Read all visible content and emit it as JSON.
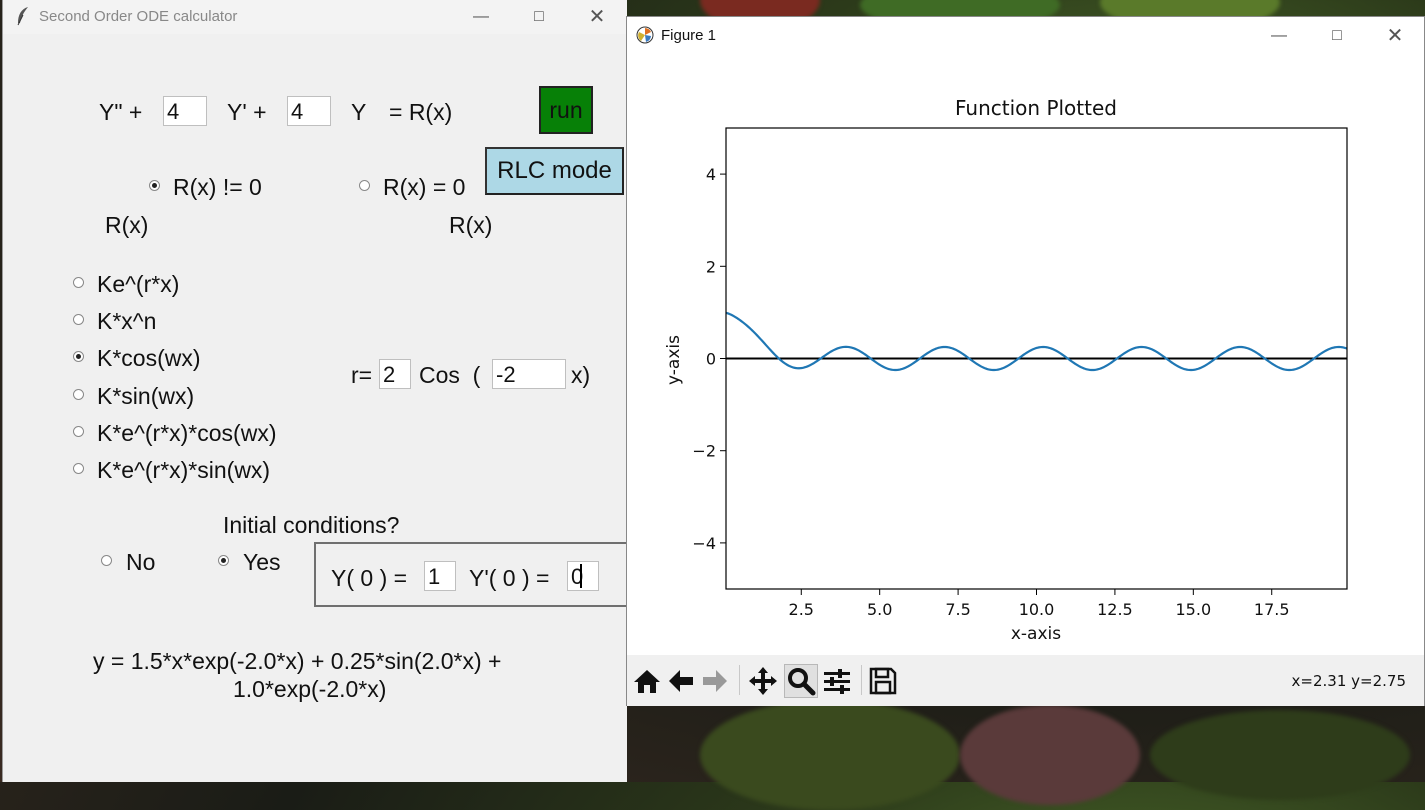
{
  "tk_window": {
    "title": "Second Order ODE calculator",
    "equation": {
      "y2_label": "Y\" +",
      "coef_b": "4",
      "y1_label": "Y' +",
      "coef_c": "4",
      "y0_label": "Y",
      "rhs_label": "= R(x)"
    },
    "run_button": "run",
    "rlc_button": "RLC mode",
    "rx_mode": {
      "nonzero_label": "R(x) != 0",
      "zero_label": "R(x) = 0",
      "selected": "nonzero",
      "col_left_label": "R(x)",
      "col_right_label": "R(x)"
    },
    "forcing_options": [
      {
        "label": "Ke^(r*x)",
        "selected": false
      },
      {
        "label": "K*x^n",
        "selected": false
      },
      {
        "label": "K*cos(wx)",
        "selected": true
      },
      {
        "label": "K*sin(wx)",
        "selected": false
      },
      {
        "label": "K*e^(r*x)*cos(wx)",
        "selected": false
      },
      {
        "label": "K*e^(r*x)*sin(wx)",
        "selected": false
      }
    ],
    "params": {
      "r_label": "r=",
      "r_value": "2",
      "func_label": "Cos  (",
      "w_value": "-2",
      "close_label": "x)"
    },
    "initial_conditions": {
      "question": "Initial conditions?",
      "no_label": "No",
      "yes_label": "Yes",
      "selected": "yes",
      "y0_label": "Y( 0 ) =",
      "y0_value": "1",
      "yp0_label": "Y'( 0 ) =",
      "yp0_value": "0"
    },
    "solution_line1": "y = 1.5*x*exp(-2.0*x) + 0.25*sin(2.0*x) +",
    "solution_line2": "1.0*exp(-2.0*x)"
  },
  "figure_window": {
    "title": "Figure 1",
    "coords_readout": "x=2.31 y=2.75",
    "toolbar": [
      "home-icon",
      "back-icon",
      "forward-icon",
      "pan-icon",
      "zoom-icon",
      "configure-icon",
      "save-icon"
    ],
    "line_color": "#1f77b4"
  },
  "chart_data": {
    "type": "line",
    "title": "Function Plotted",
    "xlabel": "x-axis",
    "ylabel": "y-axis",
    "xlim": [
      0.1,
      19.9
    ],
    "ylim": [
      -5,
      5
    ],
    "xticks": [
      2.5,
      5.0,
      7.5,
      10.0,
      12.5,
      15.0,
      17.5
    ],
    "xtick_labels": [
      "2.5",
      "5.0",
      "7.5",
      "10.0",
      "12.5",
      "15.0",
      "17.5"
    ],
    "yticks": [
      4,
      2,
      0,
      -2,
      -4
    ],
    "ytick_labels": [
      "4",
      "2",
      "0",
      "−2",
      "−4"
    ],
    "function": "1.5*x*exp(-2*x) + 0.25*sin(2*x) + exp(-2*x)",
    "zero_line": true,
    "grid": false
  }
}
